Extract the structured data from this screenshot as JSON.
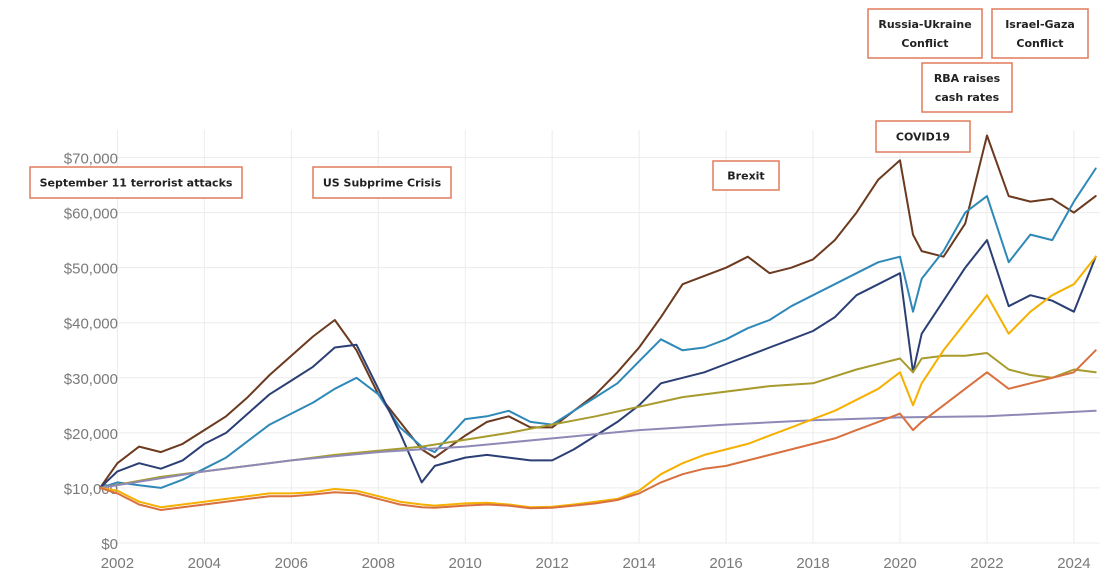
{
  "chart_data": {
    "type": "line",
    "title": "",
    "xlabel": "",
    "ylabel": "",
    "xlim": [
      2001.6,
      2024.6
    ],
    "ylim": [
      0,
      75000
    ],
    "grid": true,
    "legend": "none",
    "y_ticks": [
      {
        "value": 0,
        "label": "$0"
      },
      {
        "value": 10000,
        "label": "$10,000"
      },
      {
        "value": 20000,
        "label": "$20,000"
      },
      {
        "value": 30000,
        "label": "$30,000"
      },
      {
        "value": 40000,
        "label": "$40,000"
      },
      {
        "value": 50000,
        "label": "$50,000"
      },
      {
        "value": 60000,
        "label": "$60,000"
      },
      {
        "value": 70000,
        "label": "$70,000"
      }
    ],
    "x_ticks": [
      {
        "value": 2002,
        "label": "2002"
      },
      {
        "value": 2004,
        "label": "2004"
      },
      {
        "value": 2006,
        "label": "2006"
      },
      {
        "value": 2008,
        "label": "2008"
      },
      {
        "value": 2010,
        "label": "2010"
      },
      {
        "value": 2012,
        "label": "2012"
      },
      {
        "value": 2014,
        "label": "2014"
      },
      {
        "value": 2016,
        "label": "2016"
      },
      {
        "value": 2018,
        "label": "2018"
      },
      {
        "value": 2020,
        "label": "2020"
      },
      {
        "value": 2022,
        "label": "2022"
      },
      {
        "value": 2024,
        "label": "2024"
      }
    ],
    "series": [
      {
        "color": "#6b3a1f",
        "x": [
          2001.6,
          2002,
          2002.5,
          2003,
          2003.5,
          2004,
          2004.5,
          2005,
          2005.5,
          2006,
          2006.5,
          2007,
          2007.5,
          2008,
          2008.5,
          2009,
          2009.3,
          2010,
          2010.5,
          2011,
          2011.5,
          2012,
          2012.5,
          2013,
          2013.5,
          2014,
          2014.5,
          2015,
          2015.5,
          2016,
          2016.5,
          2017,
          2017.5,
          2018,
          2018.5,
          2019,
          2019.5,
          2020,
          2020.3,
          2020.5,
          2021,
          2021.5,
          2022,
          2022.5,
          2023,
          2023.5,
          2024,
          2024.5
        ],
        "y": [
          10000,
          14500,
          17500,
          16500,
          18000,
          20500,
          23000,
          26500,
          30500,
          34000,
          37500,
          40500,
          35000,
          27000,
          22000,
          17000,
          15500,
          19500,
          22000,
          23000,
          21000,
          21000,
          24000,
          27000,
          31000,
          35500,
          41000,
          47000,
          48500,
          50000,
          52000,
          49000,
          50000,
          51500,
          55000,
          60000,
          66000,
          69500,
          56000,
          53000,
          52000,
          58000,
          74000,
          63000,
          62000,
          62500,
          60000,
          63000
        ]
      },
      {
        "color": "#2f89b8",
        "x": [
          2001.6,
          2002,
          2002.5,
          2003,
          2003.5,
          2004,
          2004.5,
          2005,
          2005.5,
          2006,
          2006.5,
          2007,
          2007.5,
          2008,
          2008.5,
          2009,
          2009.3,
          2010,
          2010.5,
          2011,
          2011.5,
          2012,
          2012.5,
          2013,
          2013.5,
          2014,
          2014.5,
          2015,
          2015.5,
          2016,
          2016.5,
          2017,
          2017.5,
          2018,
          2018.5,
          2019,
          2019.5,
          2020,
          2020.3,
          2020.5,
          2021,
          2021.5,
          2022,
          2022.5,
          2023,
          2023.5,
          2024,
          2024.5
        ],
        "y": [
          10000,
          11000,
          10500,
          10000,
          11500,
          13500,
          15500,
          18500,
          21500,
          23500,
          25500,
          28000,
          30000,
          27000,
          21000,
          17500,
          16500,
          22500,
          23000,
          24000,
          22000,
          21500,
          24000,
          26500,
          29000,
          33000,
          37000,
          35000,
          35500,
          37000,
          39000,
          40500,
          43000,
          45000,
          47000,
          49000,
          51000,
          52000,
          42000,
          48000,
          53000,
          60000,
          63000,
          51000,
          56000,
          55000,
          62000,
          68000
        ]
      },
      {
        "color": "#2b3f75",
        "x": [
          2001.6,
          2002,
          2002.5,
          2003,
          2003.5,
          2004,
          2004.5,
          2005,
          2005.5,
          2006,
          2006.5,
          2007,
          2007.5,
          2008,
          2008.5,
          2009,
          2009.3,
          2010,
          2010.5,
          2011,
          2011.5,
          2012,
          2012.5,
          2013,
          2013.5,
          2014,
          2014.5,
          2015,
          2015.5,
          2016,
          2016.5,
          2017,
          2017.5,
          2018,
          2018.5,
          2019,
          2019.5,
          2020,
          2020.3,
          2020.5,
          2021,
          2021.5,
          2022,
          2022.5,
          2023,
          2023.5,
          2024,
          2024.5
        ],
        "y": [
          10000,
          13000,
          14500,
          13500,
          15000,
          18000,
          20000,
          23500,
          27000,
          29500,
          32000,
          35500,
          36000,
          28000,
          20000,
          11000,
          14000,
          15500,
          16000,
          15500,
          15000,
          15000,
          17000,
          19500,
          22000,
          25000,
          29000,
          30000,
          31000,
          32500,
          34000,
          35500,
          37000,
          38500,
          41000,
          45000,
          47000,
          49000,
          31000,
          38000,
          44000,
          50000,
          55000,
          43000,
          45000,
          44000,
          42000,
          52000
        ]
      },
      {
        "color": "#a89b2e",
        "x": [
          2001.6,
          2003,
          2005,
          2007,
          2009,
          2011,
          2013,
          2015,
          2017,
          2018,
          2019,
          2020,
          2020.3,
          2020.5,
          2021,
          2021.5,
          2022,
          2022.5,
          2023,
          2023.5,
          2024,
          2024.5
        ],
        "y": [
          10000,
          12000,
          14000,
          16000,
          17500,
          20000,
          23000,
          26500,
          28500,
          29000,
          31500,
          33500,
          31000,
          33500,
          34000,
          34000,
          34500,
          31500,
          30500,
          30000,
          31500,
          31000
        ]
      },
      {
        "color": "#8f89b8",
        "x": [
          2001.6,
          2004,
          2006,
          2008,
          2010,
          2012,
          2014,
          2016,
          2018,
          2020,
          2022,
          2024.5
        ],
        "y": [
          10000,
          13000,
          15000,
          16500,
          17500,
          19000,
          20500,
          21500,
          22300,
          22800,
          23000,
          24000
        ]
      },
      {
        "color": "#f5b000",
        "x": [
          2001.6,
          2002,
          2002.5,
          2003,
          2003.5,
          2004,
          2004.5,
          2005,
          2005.5,
          2006,
          2006.5,
          2007,
          2007.5,
          2008,
          2008.5,
          2009,
          2009.3,
          2010,
          2010.5,
          2011,
          2011.5,
          2012,
          2012.5,
          2013,
          2013.5,
          2014,
          2014.5,
          2015,
          2015.5,
          2016,
          2016.5,
          2017,
          2017.5,
          2018,
          2018.5,
          2019,
          2019.5,
          2020,
          2020.3,
          2020.5,
          2021,
          2021.5,
          2022,
          2022.5,
          2023,
          2023.5,
          2024,
          2024.5
        ],
        "y": [
          10000,
          9500,
          7500,
          6500,
          7000,
          7500,
          8000,
          8500,
          9000,
          9000,
          9200,
          9800,
          9500,
          8500,
          7500,
          7000,
          6800,
          7200,
          7300,
          7000,
          6500,
          6600,
          7000,
          7500,
          8000,
          9500,
          12500,
          14500,
          16000,
          17000,
          18000,
          19500,
          21000,
          22500,
          24000,
          26000,
          28000,
          31000,
          25000,
          29000,
          35000,
          40000,
          45000,
          38000,
          42000,
          45000,
          47000,
          52000
        ]
      },
      {
        "color": "#d9703f",
        "x": [
          2001.6,
          2002,
          2002.5,
          2003,
          2003.5,
          2004,
          2004.5,
          2005,
          2005.5,
          2006,
          2006.5,
          2007,
          2007.5,
          2008,
          2008.5,
          2009,
          2009.3,
          2010,
          2010.5,
          2011,
          2011.5,
          2012,
          2012.5,
          2013,
          2013.5,
          2014,
          2014.5,
          2015,
          2015.5,
          2016,
          2016.5,
          2017,
          2017.5,
          2018,
          2018.5,
          2019,
          2019.5,
          2020,
          2020.3,
          2020.5,
          2021,
          2021.5,
          2022,
          2022.5,
          2023,
          2023.5,
          2024,
          2024.5
        ],
        "y": [
          10000,
          9000,
          7000,
          6000,
          6500,
          7000,
          7500,
          8000,
          8500,
          8500,
          8800,
          9200,
          9000,
          8000,
          7000,
          6500,
          6400,
          6800,
          7000,
          6800,
          6300,
          6400,
          6800,
          7200,
          7800,
          9000,
          11000,
          12500,
          13500,
          14000,
          15000,
          16000,
          17000,
          18000,
          19000,
          20500,
          22000,
          23500,
          20500,
          22000,
          25000,
          28000,
          31000,
          28000,
          29000,
          30000,
          31000,
          35000
        ]
      }
    ],
    "annotations": [
      {
        "text": "September 11 terrorist attacks",
        "lines": [
          "September 11 terrorist attacks"
        ]
      },
      {
        "text": "US Subprime Crisis",
        "lines": [
          "US Subprime Crisis"
        ]
      },
      {
        "text": "Brexit",
        "lines": [
          "Brexit"
        ]
      },
      {
        "text": "COVID19",
        "lines": [
          "COVID19"
        ]
      },
      {
        "text": "Russia-Ukraine Conflict",
        "lines": [
          "Russia-Ukraine",
          "Conflict"
        ]
      },
      {
        "text": "Israel-Gaza Conflict",
        "lines": [
          "Israel-Gaza",
          "Conflict"
        ]
      },
      {
        "text": "RBA raises cash rates",
        "lines": [
          "RBA raises",
          "cash rates"
        ]
      }
    ]
  }
}
